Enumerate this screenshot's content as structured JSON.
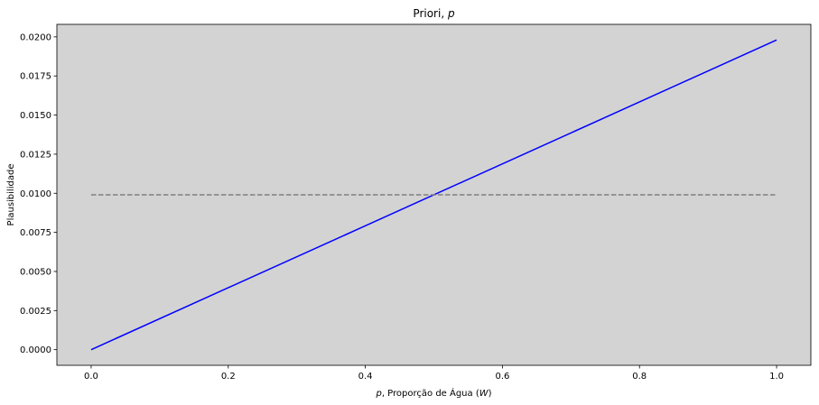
{
  "chart_data": {
    "type": "line",
    "title_main": "Priori, ",
    "title_var": "p",
    "xlabel_var": "p",
    "xlabel_mid": ", Proporção de Água (",
    "xlabel_var2": "W",
    "xlabel_end": ")",
    "ylabel": "Plausibilidade",
    "xlim": [
      -0.05,
      1.05
    ],
    "ylim": [
      -0.001,
      0.0208
    ],
    "xticks": [
      0.0,
      0.2,
      0.4,
      0.6,
      0.8,
      1.0
    ],
    "xtick_labels": [
      "0.0",
      "0.2",
      "0.4",
      "0.6",
      "0.8",
      "1.0"
    ],
    "yticks": [
      0.0,
      0.0025,
      0.005,
      0.0075,
      0.01,
      0.0125,
      0.015,
      0.0175,
      0.02
    ],
    "ytick_labels": [
      "0.0000",
      "0.0025",
      "0.0050",
      "0.0075",
      "0.0100",
      "0.0125",
      "0.0150",
      "0.0175",
      "0.0200"
    ],
    "grid": false,
    "background_color": "#d3d3d3",
    "series": [
      {
        "style": "solid",
        "color": "#0000ff",
        "x": [
          0.0,
          1.0
        ],
        "y": [
          0.0,
          0.0198
        ]
      },
      {
        "style": "dashed",
        "color": "#808080",
        "x": [
          0.0,
          1.0
        ],
        "y": [
          0.0099,
          0.0099
        ]
      }
    ]
  }
}
